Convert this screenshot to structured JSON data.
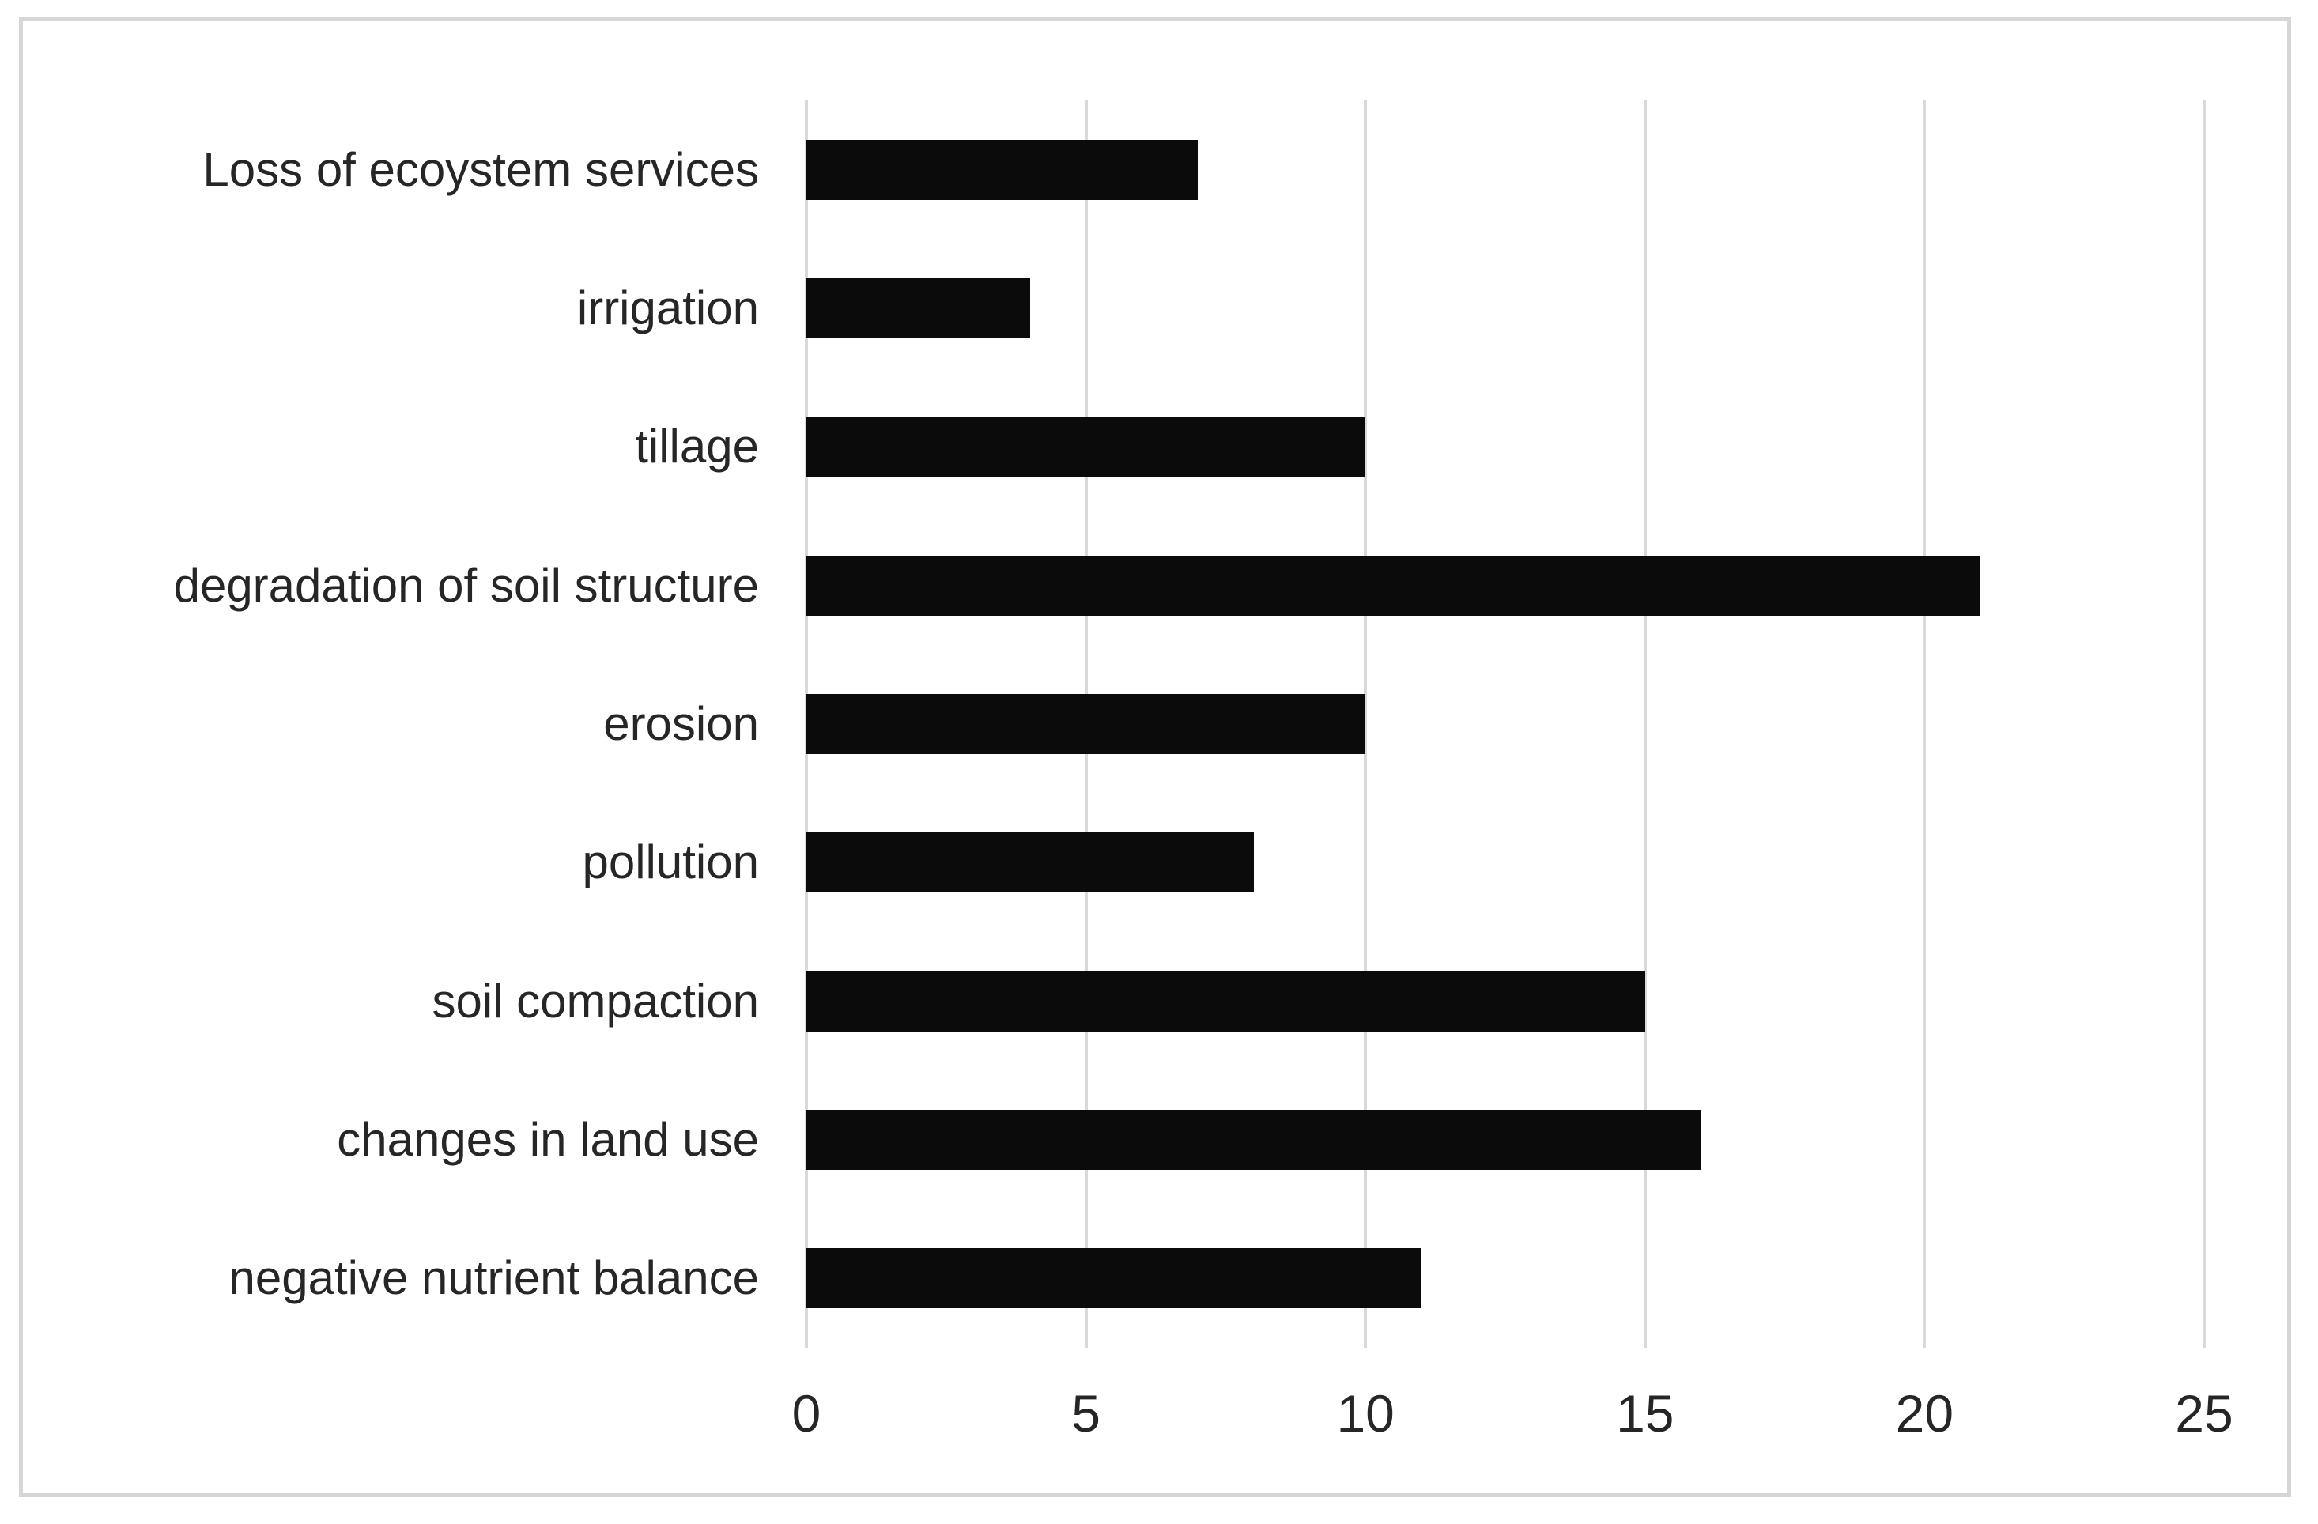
{
  "chart_data": {
    "type": "bar",
    "orientation": "horizontal",
    "title": "",
    "xlabel": "",
    "ylabel": "",
    "categories": [
      "Loss of ecoystem services",
      "irrigation",
      "tillage",
      "degradation of soil structure",
      "erosion",
      "pollution",
      "soil compaction",
      "changes in land use",
      "negative nutrient balance"
    ],
    "values": [
      7,
      4,
      10,
      21,
      10,
      8,
      15,
      16,
      11
    ],
    "xlim": [
      0,
      25
    ],
    "xticks": [
      0,
      5,
      10,
      15,
      20,
      25
    ],
    "grid": "vertical-gridlines-on",
    "legend": "none",
    "colors": {
      "bar": "#0b0b0b",
      "gridline": "#d9d9d9",
      "text": "#262626",
      "frame_border": "#d6d6d6",
      "background": "#ffffff"
    }
  }
}
